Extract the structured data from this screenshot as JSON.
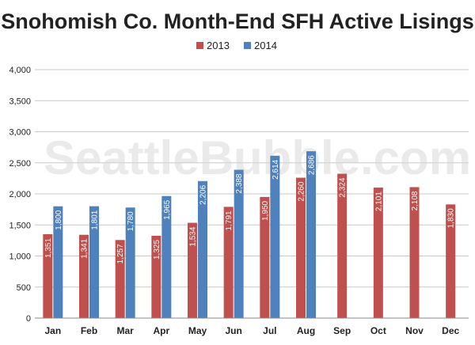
{
  "chart_data": {
    "type": "bar",
    "title": "Snohomish Co. Month-End SFH Active Lisings",
    "xlabel": "",
    "ylabel": "",
    "categories": [
      "Jan",
      "Feb",
      "Mar",
      "Apr",
      "May",
      "Jun",
      "Jul",
      "Aug",
      "Sep",
      "Oct",
      "Nov",
      "Dec"
    ],
    "series": [
      {
        "name": "2013",
        "color": "#c0504d",
        "values": [
          1351,
          1341,
          1257,
          1325,
          1534,
          1791,
          1950,
          2260,
          2324,
          2101,
          2108,
          1830
        ],
        "labels": [
          "1,351",
          "1,341",
          "1,257",
          "1,325",
          "1,534",
          "1,791",
          "1,950",
          "2,260",
          "2,324",
          "2,101",
          "2,108",
          "1,830"
        ]
      },
      {
        "name": "2014",
        "color": "#4f81bd",
        "values": [
          1800,
          1801,
          1780,
          1965,
          2206,
          2388,
          2614,
          2686,
          null,
          null,
          null,
          null
        ],
        "labels": [
          "1,800",
          "1,801",
          "1,780",
          "1,965",
          "2,206",
          "2,388",
          "2,614",
          "2,686",
          null,
          null,
          null,
          null
        ]
      }
    ],
    "ylim": [
      0,
      4000
    ],
    "yticks": [
      0,
      500,
      1000,
      1500,
      2000,
      2500,
      3000,
      3500,
      4000
    ],
    "ytick_labels": [
      "0",
      "500",
      "1,000",
      "1,500",
      "2,000",
      "2,500",
      "3,000",
      "3,500",
      "4,000"
    ],
    "grid": true,
    "legend_position": "top-center",
    "watermark": "SeattleBubble.com"
  }
}
